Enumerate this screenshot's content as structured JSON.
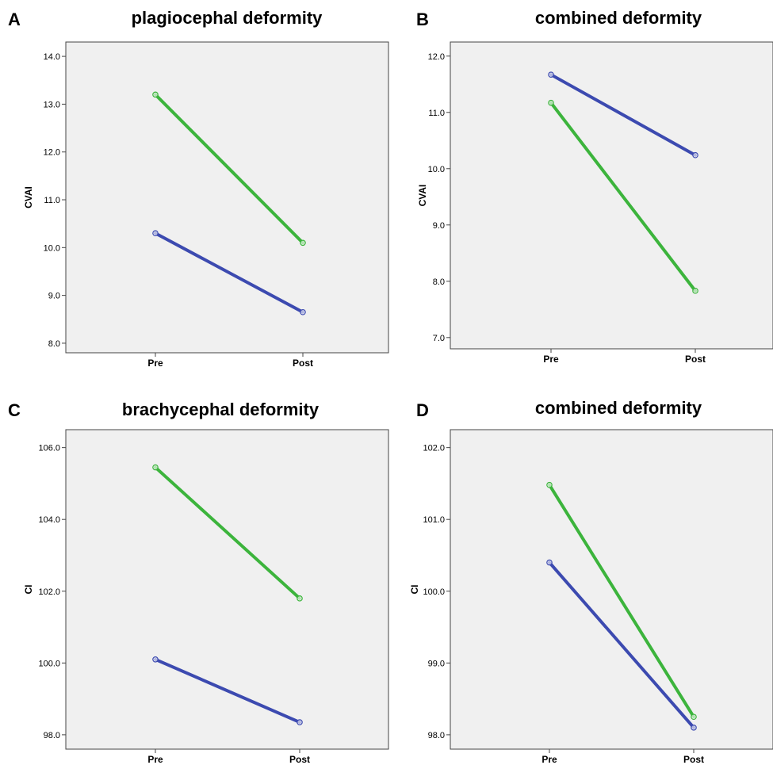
{
  "colors": {
    "green": "#3cb43c",
    "blue": "#3c4ab0",
    "plot_background": "#f0f0f0"
  },
  "chart_data": [
    {
      "letter": "A",
      "type": "line",
      "title": "plagiocephal deformity",
      "xlabel": "",
      "ylabel": "CVAI",
      "categories": [
        "Pre",
        "Post"
      ],
      "ylim": [
        7.8,
        14.3
      ],
      "yticks": [
        "8.0",
        "9.0",
        "10.0",
        "11.0",
        "12.0",
        "13.0",
        "14.0"
      ],
      "series": [
        {
          "color": "#3cb43c",
          "values": [
            13.2,
            10.1
          ]
        },
        {
          "color": "#3c4ab0",
          "values": [
            10.3,
            8.65
          ]
        }
      ]
    },
    {
      "letter": "B",
      "type": "line",
      "title": "combined deformity",
      "xlabel": "",
      "ylabel": "CVAI",
      "categories": [
        "Pre",
        "Post"
      ],
      "ylim": [
        6.8,
        12.25
      ],
      "yticks": [
        "7.0",
        "8.0",
        "9.0",
        "10.0",
        "11.0",
        "12.0"
      ],
      "series": [
        {
          "color": "#3c4ab0",
          "values": [
            11.67,
            10.24
          ]
        },
        {
          "color": "#3cb43c",
          "values": [
            11.17,
            7.83
          ]
        }
      ]
    },
    {
      "letter": "C",
      "type": "line",
      "title": "brachycephal deformity",
      "xlabel": "",
      "ylabel": "CI",
      "categories": [
        "Pre",
        "Post"
      ],
      "ylim": [
        97.6,
        106.5
      ],
      "yticks": [
        "98.0",
        "100.0",
        "102.0",
        "104.0",
        "106.0"
      ],
      "series": [
        {
          "color": "#3cb43c",
          "values": [
            105.45,
            101.8
          ]
        },
        {
          "color": "#3c4ab0",
          "values": [
            100.1,
            98.35
          ]
        }
      ]
    },
    {
      "letter": "D",
      "type": "line",
      "title": "combined deformity",
      "xlabel": "",
      "ylabel": "CI",
      "categories": [
        "Pre",
        "Post"
      ],
      "ylim": [
        97.8,
        102.25
      ],
      "yticks": [
        "98.0",
        "99.0",
        "100.0",
        "101.0",
        "102.0"
      ],
      "series": [
        {
          "color": "#3cb43c",
          "values": [
            101.48,
            98.25
          ]
        },
        {
          "color": "#3c4ab0",
          "values": [
            100.4,
            98.1
          ]
        }
      ]
    }
  ]
}
